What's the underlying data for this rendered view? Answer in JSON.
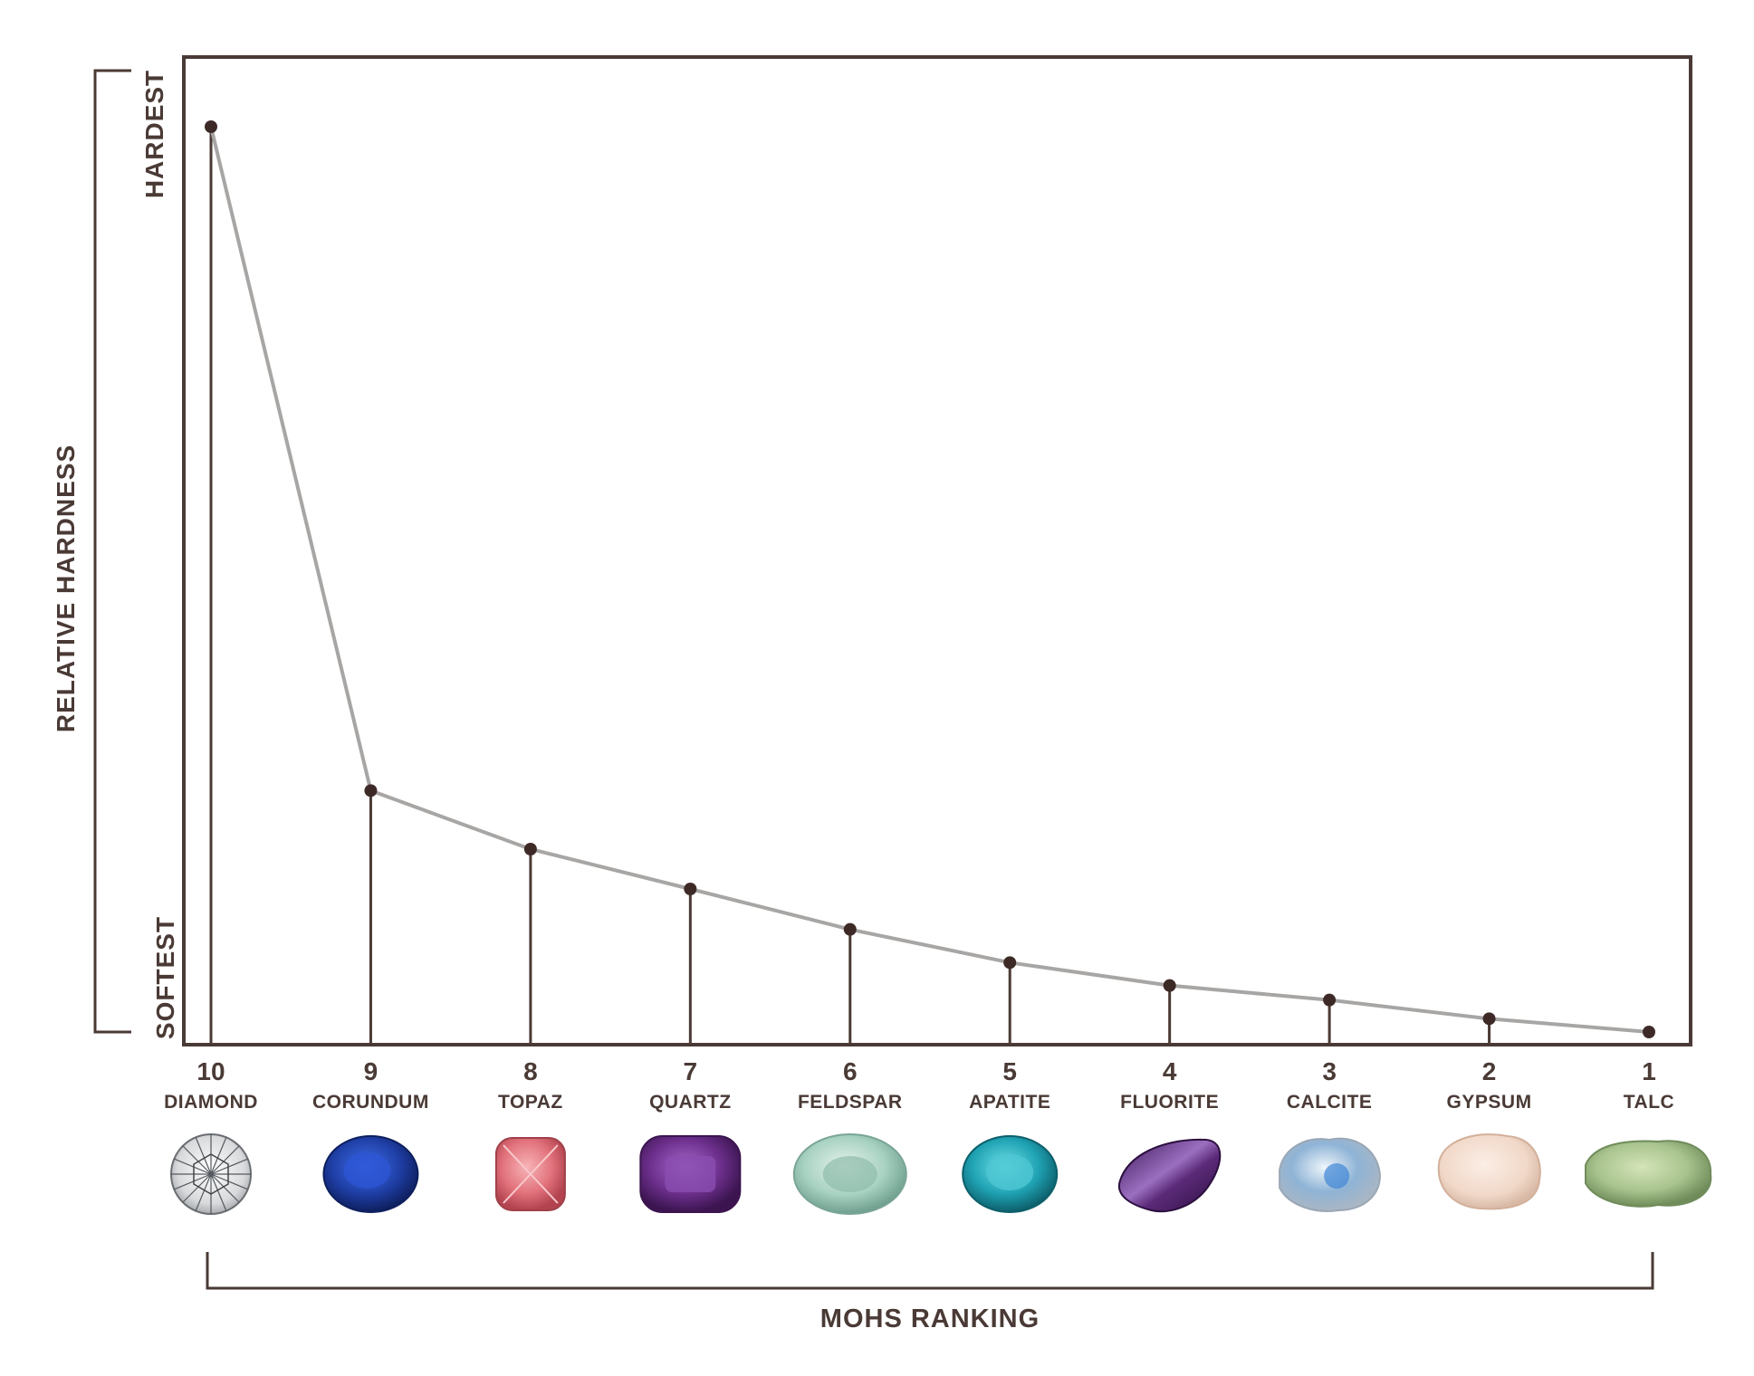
{
  "chart_data": {
    "type": "line",
    "title": "",
    "xlabel": "MOHS RANKING",
    "ylabel": "RELATIVE HARDNESS",
    "y_top_label": "HARDEST",
    "y_bottom_label": "SOFTEST",
    "x_direction": "descending",
    "grid": false,
    "y_scale": "relative",
    "ylim": [
      0,
      1600
    ],
    "points": [
      {
        "rank": "10",
        "mineral": "DIAMOND",
        "relative_hardness": 1500,
        "icon": "diamond-gem",
        "color": "#e8eaec"
      },
      {
        "rank": "9",
        "mineral": "CORUNDUM",
        "relative_hardness": 400,
        "icon": "sapphire-gem",
        "color": "#1f3fa6"
      },
      {
        "rank": "8",
        "mineral": "TOPAZ",
        "relative_hardness": 303,
        "icon": "pink-topaz-gem",
        "color": "#e2737d"
      },
      {
        "rank": "7",
        "mineral": "QUARTZ",
        "relative_hardness": 237,
        "icon": "amethyst-gem",
        "color": "#6c2f8c"
      },
      {
        "rank": "6",
        "mineral": "FELDSPAR",
        "relative_hardness": 170,
        "icon": "feldspar-gem",
        "color": "#a8d2c2"
      },
      {
        "rank": "5",
        "mineral": "APATITE",
        "relative_hardness": 115,
        "icon": "apatite-gem",
        "color": "#1fa2b3"
      },
      {
        "rank": "4",
        "mineral": "FLUORITE",
        "relative_hardness": 77,
        "icon": "fluorite-stone",
        "color": "#5b2a78"
      },
      {
        "rank": "3",
        "mineral": "CALCITE",
        "relative_hardness": 53,
        "icon": "calcite-rock",
        "color": "#8fb4d6"
      },
      {
        "rank": "2",
        "mineral": "GYPSUM",
        "relative_hardness": 22,
        "icon": "gypsum-rock",
        "color": "#f1d8c8"
      },
      {
        "rank": "1",
        "mineral": "TALC",
        "relative_hardness": 0,
        "icon": "talc-rock",
        "color": "#a9c48e"
      }
    ]
  }
}
